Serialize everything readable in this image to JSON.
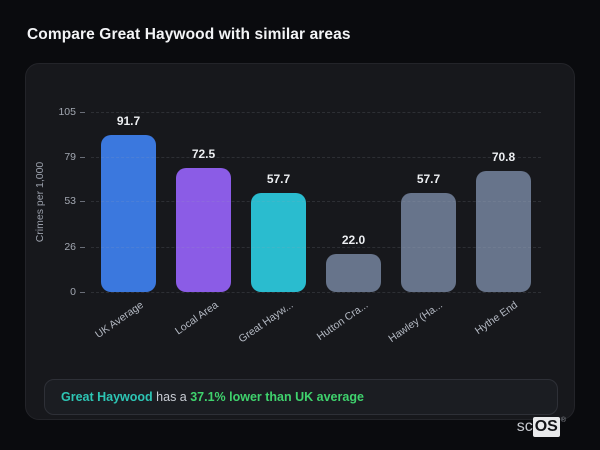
{
  "page": {
    "title": "Compare Great Haywood with similar areas"
  },
  "chart_data": {
    "type": "bar",
    "title": "",
    "xlabel": "",
    "ylabel": "Crimes per 1,000",
    "ylim": [
      0,
      105
    ],
    "yticks": [
      0,
      26,
      53,
      79,
      105
    ],
    "grid": "horizontal-dashed",
    "legend": "none",
    "categories": [
      "UK Average",
      "Local Area",
      "Great Hayw...",
      "Hutton Cra...",
      "Hawley (Ha...",
      "Hythe End"
    ],
    "values": [
      91.7,
      72.5,
      57.7,
      22.0,
      57.7,
      70.8
    ],
    "value_labels": [
      "91.7",
      "72.5",
      "57.7",
      "22.0",
      "57.7",
      "70.8"
    ],
    "bar_colors": [
      "#3b78de",
      "#8b5ce6",
      "#2abccf",
      "#67748b",
      "#67748b",
      "#67748b"
    ]
  },
  "note": {
    "area_label": "Great Haywood",
    "middle": " has a ",
    "stat": "37.1% lower than UK average",
    "area_color": "#2dc5b4",
    "stat_color": "#3fd26d"
  },
  "logo": {
    "prefix": "sc",
    "suffix": "OS",
    "reg": "®"
  }
}
